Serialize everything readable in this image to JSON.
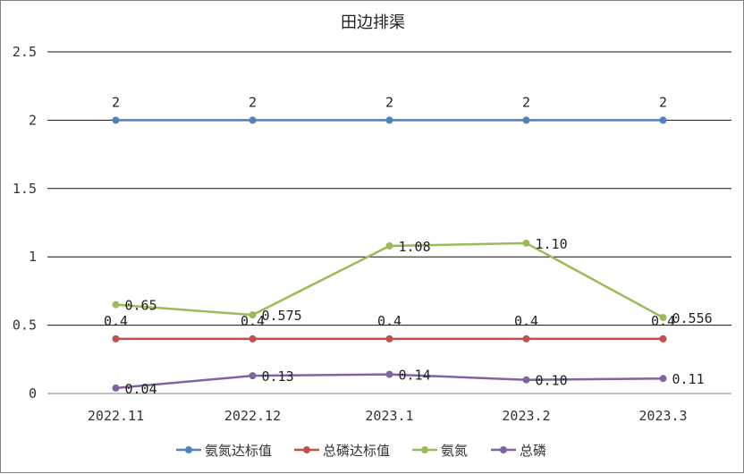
{
  "chart_data": {
    "type": "line",
    "title": "田边排渠",
    "categories": [
      "2022.11",
      "2022.12",
      "2023.1",
      "2023.2",
      "2023.3"
    ],
    "ylim": [
      0,
      2.5
    ],
    "y_ticks": [
      "0",
      "0.5",
      "1",
      "1.5",
      "2",
      "2.5"
    ],
    "grid": "horizontal",
    "legend_position": "bottom",
    "series": [
      {
        "name": "氨氮达标值",
        "color": "#4f81bd",
        "values": [
          2,
          2,
          2,
          2,
          2
        ],
        "labels": [
          "2",
          "2",
          "2",
          "2",
          "2"
        ],
        "label_pos": "above"
      },
      {
        "name": "总磷达标值",
        "color": "#c0504d",
        "values": [
          0.4,
          0.4,
          0.4,
          0.4,
          0.4
        ],
        "labels": [
          "0.4",
          "0.4",
          "0.4",
          "0.4",
          "0.4"
        ],
        "label_pos": "above"
      },
      {
        "name": "氨氮",
        "color": "#9bbb59",
        "values": [
          0.65,
          0.575,
          1.08,
          1.1,
          0.556
        ],
        "labels": [
          "0.65",
          "0.575",
          "1.08",
          "1.10",
          "0.556"
        ],
        "label_pos": "right"
      },
      {
        "name": "总磷",
        "color": "#8064a2",
        "values": [
          0.04,
          0.13,
          0.14,
          0.1,
          0.11
        ],
        "labels": [
          "0.04",
          "0.13",
          "0.14",
          "0.10",
          "0.11"
        ],
        "label_pos": "right"
      }
    ]
  }
}
